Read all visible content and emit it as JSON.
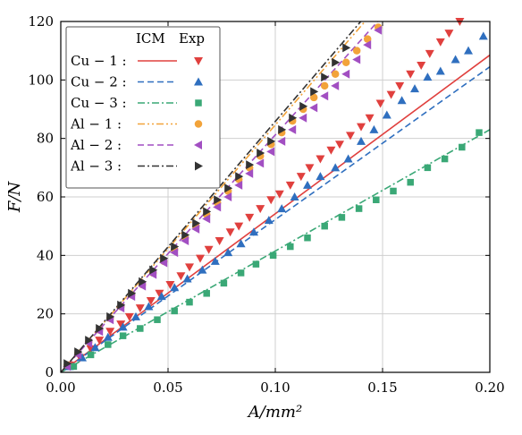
{
  "chart_data": {
    "type": "line",
    "xlabel": "A/mm²",
    "ylabel": "F/N",
    "xlim": [
      0,
      0.2
    ],
    "ylim": [
      0,
      120
    ],
    "xticks": [
      0.0,
      0.05,
      0.1,
      0.15,
      0.2
    ],
    "xtick_labels": [
      "0.00",
      "0.05",
      "0.10",
      "0.15",
      "0.20"
    ],
    "yticks": [
      0,
      20,
      40,
      60,
      80,
      100,
      120
    ],
    "ytick_labels": [
      "0",
      "20",
      "40",
      "60",
      "80",
      "100",
      "120"
    ],
    "grid": true,
    "legend": {
      "placement": "top-left",
      "header_model": "ICM",
      "header_exp": "Exp"
    },
    "series": [
      {
        "name": "Cu − 1 :",
        "color": "#e0403e",
        "dash": "solid",
        "marker": "triangle-down",
        "model": {
          "x": [
            0,
            0.2
          ],
          "y": [
            0,
            108.5
          ]
        },
        "exp": {
          "x": [
            0.004,
            0.009,
            0.014,
            0.018,
            0.023,
            0.028,
            0.032,
            0.037,
            0.042,
            0.046,
            0.051,
            0.056,
            0.06,
            0.065,
            0.069,
            0.074,
            0.079,
            0.083,
            0.088,
            0.093,
            0.098,
            0.102,
            0.107,
            0.112,
            0.116,
            0.121,
            0.126,
            0.13,
            0.135,
            0.14,
            0.144,
            0.149,
            0.154,
            0.158,
            0.163,
            0.168,
            0.172,
            0.177,
            0.181,
            0.186
          ],
          "y": [
            2.5,
            5,
            8,
            11,
            14,
            16.5,
            19,
            22,
            24.5,
            27,
            30,
            33,
            36,
            39,
            42,
            45,
            48,
            50,
            53,
            56,
            59,
            61,
            64,
            67,
            70,
            73,
            76,
            78,
            81,
            84,
            87,
            92,
            95,
            98,
            102,
            105,
            109,
            113,
            116,
            120
          ]
        }
      },
      {
        "name": "Cu − 2 :",
        "color": "#2f6fbf",
        "dash": "dashed",
        "marker": "triangle-up",
        "model": {
          "x": [
            0,
            0.2
          ],
          "y": [
            0,
            104.5
          ]
        },
        "exp": {
          "x": [
            0.004,
            0.01,
            0.016,
            0.022,
            0.029,
            0.035,
            0.041,
            0.047,
            0.053,
            0.059,
            0.066,
            0.072,
            0.078,
            0.084,
            0.09,
            0.097,
            0.103,
            0.109,
            0.115,
            0.121,
            0.128,
            0.134,
            0.14,
            0.146,
            0.152,
            0.159,
            0.165,
            0.171,
            0.177,
            0.184,
            0.19,
            0.197
          ],
          "y": [
            2,
            5,
            8.5,
            12,
            15.5,
            19,
            22.5,
            26,
            29,
            32,
            35,
            38,
            41,
            44,
            48,
            52,
            56,
            60,
            64,
            67,
            70,
            73,
            79,
            83,
            88,
            93,
            97,
            101,
            103,
            107,
            110,
            115
          ]
        }
      },
      {
        "name": "Cu − 3 :",
        "color": "#3aa876",
        "dash": "dashdot",
        "marker": "square",
        "model": {
          "x": [
            0,
            0.2
          ],
          "y": [
            0,
            83
          ]
        },
        "exp": {
          "x": [
            0.006,
            0.014,
            0.022,
            0.029,
            0.037,
            0.045,
            0.053,
            0.06,
            0.068,
            0.076,
            0.084,
            0.091,
            0.099,
            0.107,
            0.115,
            0.123,
            0.131,
            0.139,
            0.147,
            0.155,
            0.163,
            0.171,
            0.179,
            0.187,
            0.195
          ],
          "y": [
            2,
            6,
            9.5,
            12.5,
            15,
            18,
            21,
            24,
            27,
            30.5,
            34,
            37,
            40,
            43,
            46,
            50,
            53,
            56,
            59,
            62,
            65,
            70,
            73,
            77,
            82
          ]
        }
      },
      {
        "name": "Al − 1 :",
        "color": "#f2a33a",
        "dash": "dashdotdot",
        "marker": "circle",
        "model": {
          "x": [
            0,
            0.143
          ],
          "y": [
            0,
            121
          ]
        },
        "exp": {
          "x": [
            0.003,
            0.008,
            0.013,
            0.018,
            0.023,
            0.028,
            0.033,
            0.038,
            0.043,
            0.048,
            0.053,
            0.058,
            0.063,
            0.068,
            0.073,
            0.078,
            0.083,
            0.088,
            0.093,
            0.098,
            0.103,
            0.108,
            0.113,
            0.118,
            0.123,
            0.128,
            0.133,
            0.138,
            0.143,
            0.148
          ],
          "y": [
            2.5,
            6.5,
            10.5,
            14.5,
            18.5,
            22.5,
            26.5,
            30,
            34,
            38,
            42,
            46,
            50,
            54,
            58,
            62,
            66,
            70,
            74,
            78,
            82,
            86,
            90,
            94,
            98,
            102,
            106,
            110,
            114,
            118
          ]
        }
      },
      {
        "name": "Al − 2 :",
        "color": "#a24fc2",
        "dash": "dashed",
        "marker": "triangle-left",
        "model": {
          "x": [
            0,
            0.149
          ],
          "y": [
            0,
            121
          ]
        },
        "exp": {
          "x": [
            0.003,
            0.008,
            0.013,
            0.018,
            0.023,
            0.028,
            0.033,
            0.038,
            0.043,
            0.048,
            0.053,
            0.058,
            0.063,
            0.068,
            0.073,
            0.078,
            0.083,
            0.088,
            0.093,
            0.098,
            0.103,
            0.108,
            0.113,
            0.118,
            0.123,
            0.128,
            0.133,
            0.138,
            0.143,
            0.148
          ],
          "y": [
            2,
            6,
            10,
            14,
            18,
            22,
            26,
            29.5,
            33.5,
            37.5,
            41,
            45,
            49,
            52.5,
            56.5,
            60,
            64,
            68,
            71.5,
            75.5,
            79,
            83,
            87,
            90.5,
            94.5,
            98,
            102,
            107,
            112,
            117
          ]
        }
      },
      {
        "name": "Al − 3 :",
        "color": "#333333",
        "dash": "dashdot",
        "marker": "triangle-right",
        "model": {
          "x": [
            0,
            0.141
          ],
          "y": [
            0,
            121
          ]
        },
        "exp": {
          "x": [
            0.003,
            0.008,
            0.013,
            0.018,
            0.023,
            0.028,
            0.033,
            0.038,
            0.043,
            0.048,
            0.053,
            0.058,
            0.063,
            0.068,
            0.073,
            0.078,
            0.083,
            0.088,
            0.093,
            0.098,
            0.103,
            0.108,
            0.113,
            0.118,
            0.123,
            0.128,
            0.133
          ],
          "y": [
            3,
            7,
            11,
            15,
            19,
            23,
            27,
            31,
            35,
            39,
            43,
            47,
            51,
            55,
            59,
            63,
            67,
            71,
            75,
            79,
            83,
            87,
            91,
            96,
            101,
            106,
            111
          ]
        }
      }
    ]
  }
}
